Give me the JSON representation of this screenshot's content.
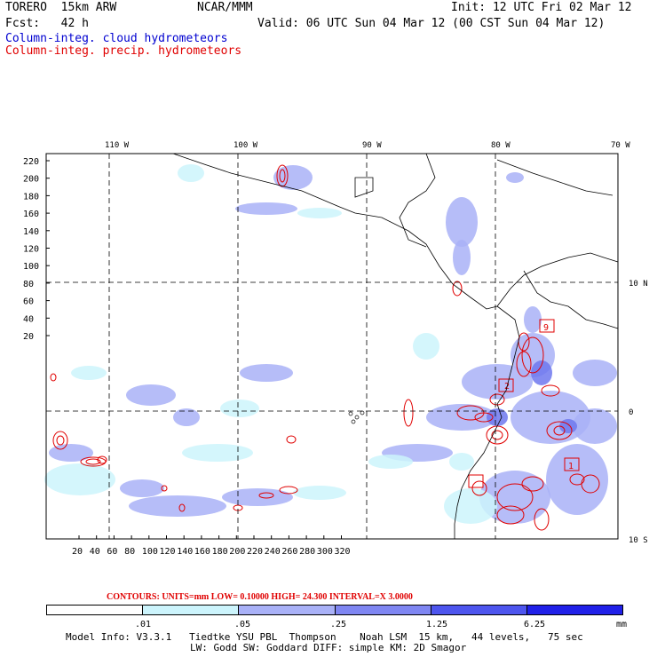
{
  "header": {
    "line1_left": "TORERO  15km ARW",
    "line1_mid": "NCAR/MMM",
    "line1_right": "Init: 12 UTC Fri 02 Mar 12",
    "line2_left": "Fcst:   42 h",
    "line2_right": "Valid: 06 UTC Sun 04 Mar 12 (00 CST Sun 04 Mar 12)",
    "field1": "Column-integ. cloud hydrometeors",
    "field2": "Column-integ. precip. hydrometeors"
  },
  "map": {
    "lon_labels": [
      "110 W",
      "100 W",
      "90 W",
      "80 W",
      "70 W"
    ],
    "lat_labels": [
      "10 N",
      "0",
      "10 S"
    ],
    "y_ticks": [
      "220",
      "200",
      "180",
      "160",
      "140",
      "120",
      "100",
      "80",
      "60",
      "40",
      "20"
    ],
    "x_ticks": [
      "20",
      "40",
      "60",
      "80",
      "100",
      "120",
      "140",
      "160",
      "180",
      "200",
      "220",
      "240",
      "260",
      "280",
      "300",
      "320"
    ],
    "box_labels": [
      "9",
      "2",
      "1"
    ],
    "colors": {
      "land": "#000000",
      "grid": "#000000",
      "cloud_light": "#ccf4fc",
      "cloud_mid": "#a9b1f7",
      "cloud_dark": "#6e78ef",
      "precip": "#e00000"
    }
  },
  "contours_text": "CONTOURS:  UNITS=mm  LOW= 0.10000       HIGH=  24.300      INTERVAL=X  3.0000",
  "legend": {
    "colors": [
      "#ffffff",
      "#ccf4fc",
      "#a9b1f7",
      "#7f86f2",
      "#4d55ee",
      "#2020e8"
    ],
    "labels": [
      ".01",
      ".05",
      ".25",
      "1.25",
      "6.25",
      "mm"
    ]
  },
  "footer": {
    "line1": "Model Info: V3.3.1   Tiedtke YSU PBL  Thompson    Noah LSM  15 km,   44 levels,   75 sec",
    "line2": "LW: Godd SW: Goddard DIFF: simple KM: 2D Smagor"
  }
}
